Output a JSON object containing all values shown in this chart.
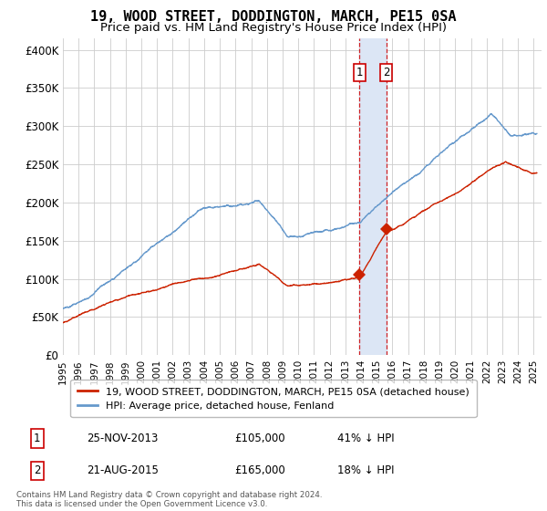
{
  "title": "19, WOOD STREET, DODDINGTON, MARCH, PE15 0SA",
  "subtitle": "Price paid vs. HM Land Registry's House Price Index (HPI)",
  "ylabel_ticks": [
    "£0",
    "£50K",
    "£100K",
    "£150K",
    "£200K",
    "£250K",
    "£300K",
    "£350K",
    "£400K"
  ],
  "ytick_vals": [
    0,
    50000,
    100000,
    150000,
    200000,
    250000,
    300000,
    350000,
    400000
  ],
  "ylim": [
    0,
    415000
  ],
  "sale1_x": 2013.9,
  "sale1_price": 105000,
  "sale2_x": 2015.6,
  "sale2_price": 165000,
  "legend_line1": "19, WOOD STREET, DODDINGTON, MARCH, PE15 0SA (detached house)",
  "legend_line2": "HPI: Average price, detached house, Fenland",
  "sale_info": [
    {
      "num": "1",
      "date": "25-NOV-2013",
      "price": "£105,000",
      "pct": "41% ↓ HPI"
    },
    {
      "num": "2",
      "date": "21-AUG-2015",
      "price": "£165,000",
      "pct": "18% ↓ HPI"
    }
  ],
  "footnote": "Contains HM Land Registry data © Crown copyright and database right 2024.\nThis data is licensed under the Open Government Licence v3.0.",
  "hpi_color": "#6699cc",
  "price_color": "#cc2200",
  "shade_color": "#dce6f5",
  "title_fontsize": 11,
  "subtitle_fontsize": 9.5
}
